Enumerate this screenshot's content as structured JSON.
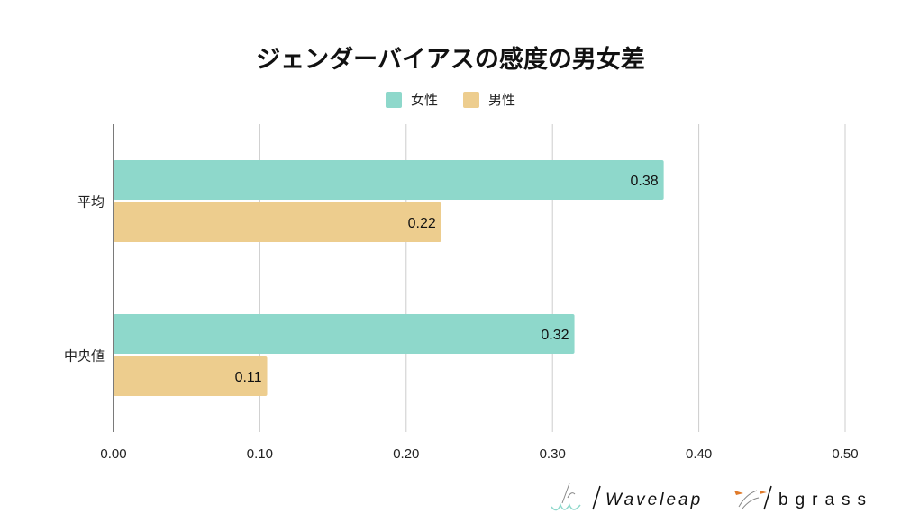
{
  "chart_data": {
    "type": "bar",
    "orientation": "horizontal",
    "title": "ジェンダーバイアスの感度の男女差",
    "categories": [
      "平均",
      "中央値"
    ],
    "series": [
      {
        "name": "女性",
        "color": "#8ed8cb",
        "values": [
          0.376,
          0.315
        ],
        "labels": [
          "0.38",
          "0.32"
        ]
      },
      {
        "name": "男性",
        "color": "#edcd8e",
        "values": [
          0.224,
          0.105
        ],
        "labels": [
          "0.22",
          "0.11"
        ]
      }
    ],
    "xlim": [
      0,
      0.5
    ],
    "xticks": [
      0,
      0.1,
      0.2,
      0.3,
      0.4,
      0.5
    ],
    "xtick_labels": [
      "0.00",
      "0.10",
      "0.20",
      "0.30",
      "0.40",
      "0.50"
    ],
    "xlabel": "",
    "ylabel": "",
    "grid": "vertical",
    "legend": "top-center"
  },
  "logos": {
    "waveleap": "Waveleap",
    "bgrass": "bgrass"
  }
}
